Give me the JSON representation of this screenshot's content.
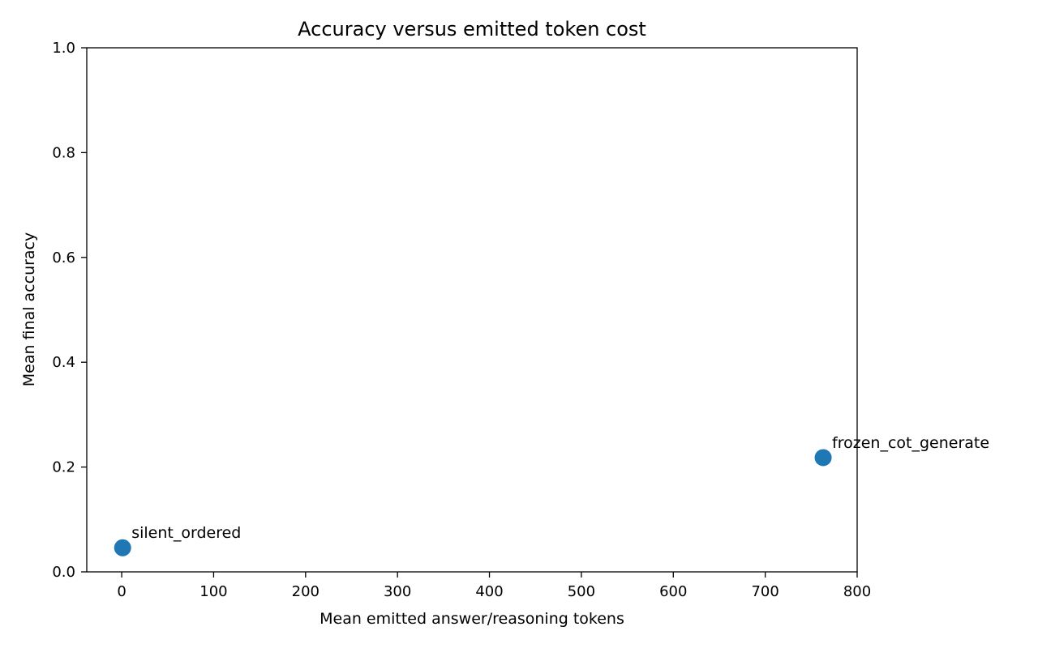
{
  "chart_data": {
    "type": "scatter",
    "title": "Accuracy versus emitted token cost",
    "xlabel": "Mean emitted answer/reasoning tokens",
    "ylabel": "Mean final accuracy",
    "xlim": [
      -38,
      800
    ],
    "ylim": [
      0,
      1.0
    ],
    "xticks": [
      0,
      100,
      200,
      300,
      400,
      500,
      600,
      700,
      800
    ],
    "yticks": [
      0.0,
      0.2,
      0.4,
      0.6,
      0.8,
      1.0
    ],
    "grid": false,
    "points": [
      {
        "label": "silent_ordered",
        "x": 1,
        "y": 0.046
      },
      {
        "label": "frozen_cot_generate",
        "x": 763,
        "y": 0.218
      }
    ],
    "colors": {
      "point": "#1f77b4"
    }
  }
}
